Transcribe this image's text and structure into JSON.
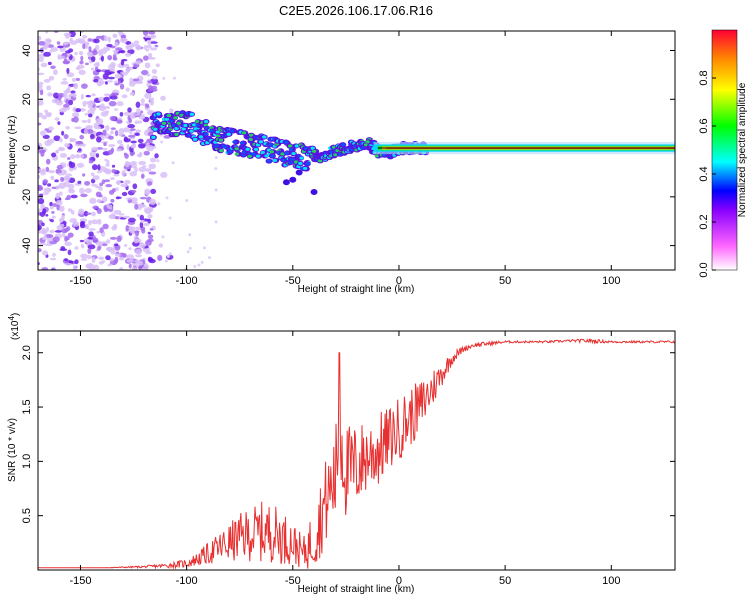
{
  "title": "C2E5.2026.106.17.06.R16",
  "chart_data": [
    {
      "type": "heatmap",
      "name": "spectrogram",
      "xlabel": "Height of straight line (km)",
      "ylabel": "Frequency (Hz)",
      "xlim": [
        -170,
        130
      ],
      "ylim": [
        -50,
        48
      ],
      "xticks": [
        -150,
        -100,
        -50,
        0,
        50,
        100
      ],
      "yticks": [
        -40,
        -20,
        0,
        20,
        40
      ],
      "ridge": {
        "x": [
          -115,
          -105,
          -97,
          -90,
          -85,
          -80,
          -75,
          -70,
          -65,
          -60,
          -55,
          -50,
          -45,
          -40,
          -35,
          -30,
          -25,
          -20,
          -15,
          -12,
          -10,
          -5,
          -2,
          0,
          5,
          10,
          130
        ],
        "y": [
          9,
          10,
          9,
          5,
          4,
          3,
          2,
          1,
          0,
          -1,
          -2,
          -3,
          -4,
          -5,
          -3,
          -1,
          0,
          1,
          2,
          0,
          -2,
          -2,
          -1,
          0,
          0,
          0,
          0
        ]
      },
      "colorbar": {
        "label": "Normalized spectral amplitude",
        "ticks": [
          0.0,
          0.2,
          0.4,
          0.6,
          0.8
        ],
        "tick_labels": [
          "0.0",
          "0.2",
          "0.4",
          "0.6",
          "0.8"
        ],
        "range": [
          0,
          1
        ],
        "colors": [
          "#ffffff",
          "#ff00ff",
          "#0000ff",
          "#00ffff",
          "#00ff00",
          "#ffff00",
          "#ff0000"
        ]
      }
    },
    {
      "type": "line",
      "name": "snr",
      "xlabel": "Height of straight line (km)",
      "ylabel": "SNR (10 * v/v)",
      "scale_label": "(x10",
      "scale_exp": "4",
      "scale_close": ")",
      "xlim": [
        -170,
        130
      ],
      "ylim": [
        0,
        2.2
      ],
      "xticks": [
        -150,
        -100,
        -50,
        0,
        50,
        100
      ],
      "yticks": [
        0.5,
        1.0,
        1.5,
        2.0
      ],
      "ytick_labels": [
        "0.5",
        "1.0",
        "1.5",
        "2.0"
      ],
      "series": [
        {
          "name": "SNR",
          "color": "#e83030",
          "x": [
            -170,
            -140,
            -120,
            -110,
            -100,
            -95,
            -90,
            -85,
            -80,
            -75,
            -70,
            -65,
            -60,
            -55,
            -50,
            -45,
            -40,
            -35,
            -30,
            -28,
            -25,
            -20,
            -15,
            -10,
            -5,
            0,
            5,
            10,
            15,
            20,
            25,
            30,
            35,
            40,
            50,
            60,
            70,
            80,
            90,
            100,
            110,
            120,
            130
          ],
          "y": [
            0.02,
            0.02,
            0.03,
            0.04,
            0.06,
            0.1,
            0.15,
            0.2,
            0.25,
            0.3,
            0.33,
            0.35,
            0.35,
            0.3,
            0.25,
            0.15,
            0.3,
            0.6,
            0.85,
            1.3,
            0.9,
            0.95,
            1.05,
            1.1,
            1.2,
            1.3,
            1.4,
            1.5,
            1.65,
            1.8,
            1.95,
            2.03,
            2.07,
            2.08,
            2.1,
            2.1,
            2.1,
            2.11,
            2.11,
            2.1,
            2.1,
            2.1,
            2.1
          ],
          "noise": [
            0.0,
            0.0,
            0.01,
            0.02,
            0.04,
            0.06,
            0.1,
            0.14,
            0.18,
            0.22,
            0.25,
            0.28,
            0.28,
            0.25,
            0.2,
            0.15,
            0.3,
            0.4,
            0.45,
            0.5,
            0.45,
            0.4,
            0.35,
            0.35,
            0.3,
            0.3,
            0.28,
            0.25,
            0.2,
            0.12,
            0.06,
            0.03,
            0.02,
            0.02,
            0.01,
            0.01,
            0.01,
            0.01,
            0.02,
            0.01,
            0.01,
            0.01,
            0.01
          ]
        }
      ]
    }
  ]
}
